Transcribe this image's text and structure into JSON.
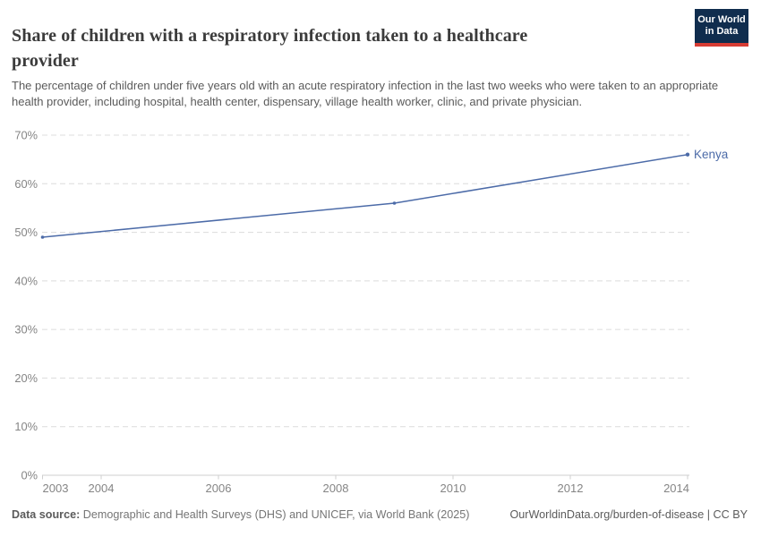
{
  "header": {
    "title": "Share of children with a respiratory infection taken to a healthcare provider",
    "subtitle": "The percentage of children under five years old with an acute respiratory infection in the last two weeks who were taken to an appropriate health provider, including hospital, health center, dispensary, village health worker, clinic, and private physician.",
    "logo": {
      "line1": "Our World",
      "line2": "in Data"
    }
  },
  "chart_data": {
    "type": "line",
    "series": [
      {
        "name": "Kenya",
        "color": "#4c6ba8",
        "points": [
          {
            "x": 2003,
            "y": 49
          },
          {
            "x": 2009,
            "y": 56
          },
          {
            "x": 2014,
            "y": 66
          }
        ]
      }
    ],
    "title": "Share of children with a respiratory infection taken to a healthcare provider",
    "xlabel": "",
    "ylabel": "",
    "xlim": [
      2003,
      2014
    ],
    "ylim": [
      0,
      70
    ],
    "x_ticks": [
      2003,
      2004,
      2006,
      2008,
      2010,
      2012,
      2014
    ],
    "y_ticks": [
      0,
      10,
      20,
      30,
      40,
      50,
      60,
      70
    ],
    "y_tick_suffix": "%",
    "grid": "horizontal-dashed",
    "legend_position": "end-of-line-label"
  },
  "footer": {
    "source_label": "Data source:",
    "source_text": " Demographic and Health Surveys (DHS) and UNICEF, via World Bank (2025)",
    "link_text": "OurWorldinData.org/burden-of-disease | CC BY"
  },
  "colors": {
    "accent_line": "#4c6ba8",
    "logo_bg": "#102d4e",
    "logo_red": "#d73c34",
    "grid": "#dcdcdc",
    "axis": "#cfcfcf",
    "tick_label": "#858585"
  }
}
